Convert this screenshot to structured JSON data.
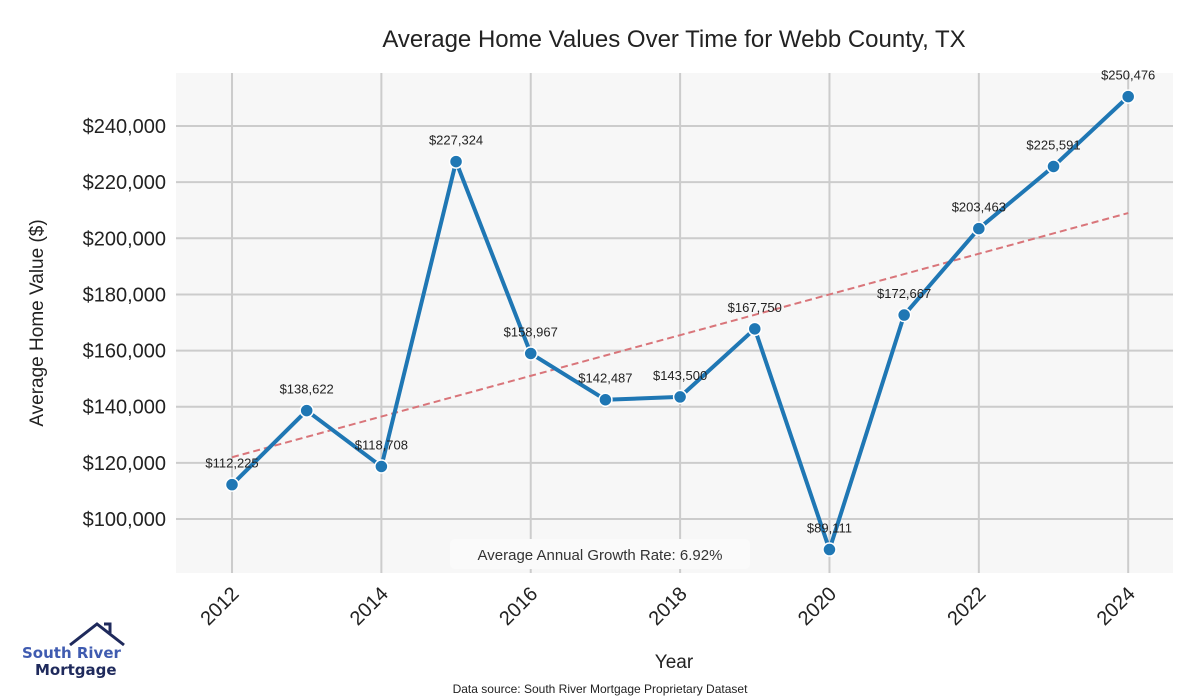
{
  "chart_data": {
    "type": "line",
    "title": "Average Home Values Over Time for Webb County, TX",
    "xlabel": "Year",
    "ylabel": "Average Home Value ($)",
    "x": [
      2012,
      2013,
      2014,
      2015,
      2016,
      2017,
      2018,
      2019,
      2020,
      2021,
      2022,
      2023,
      2024
    ],
    "series": [
      {
        "name": "Average Home Value",
        "values": [
          112225,
          138622,
          118708,
          227324,
          158967,
          142487,
          143500,
          167750,
          89111,
          172667,
          203463,
          225591,
          250476
        ],
        "color": "#1f77b4"
      }
    ],
    "data_labels": [
      "$112,225",
      "$138,622",
      "$118,708",
      "$227,324",
      "$158,967",
      "$142,487",
      "$143,500",
      "$167,750",
      "$89,111",
      "$172,667",
      "$203,463",
      "$225,591",
      "$250,476"
    ],
    "trend": {
      "name": "Trend",
      "start": [
        2012,
        122000
      ],
      "end": [
        2024,
        209000
      ],
      "color": "#d9757a"
    },
    "xticks": [
      "2012",
      "2014",
      "2016",
      "2018",
      "2020",
      "2022",
      "2024"
    ],
    "xtick_values": [
      2012,
      2014,
      2016,
      2018,
      2020,
      2022,
      2024
    ],
    "yticks": [
      "$100,000",
      "$120,000",
      "$140,000",
      "$160,000",
      "$180,000",
      "$200,000",
      "$220,000",
      "$240,000"
    ],
    "ytick_values": [
      100000,
      120000,
      140000,
      160000,
      180000,
      200000,
      220000,
      240000
    ],
    "xlim": [
      2011.25,
      2024.6
    ],
    "ylim": [
      80760,
      258890
    ],
    "grid": true,
    "annotation": "Average Annual Growth Rate: 6.92%"
  },
  "source": "Data source: South River Mortgage Proprietary Dataset",
  "logo": {
    "line1": "South River",
    "line2": "Mortgage"
  }
}
